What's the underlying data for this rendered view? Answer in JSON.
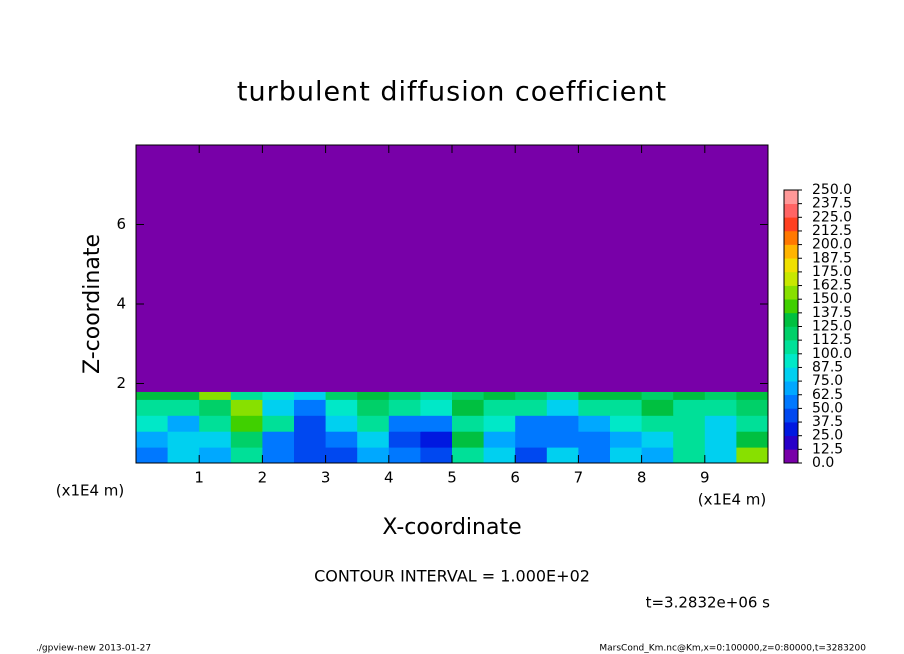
{
  "chart_data": {
    "type": "contour",
    "title": "turbulent diffusion coefficient",
    "x_label": "X-coordinate",
    "y_label": "Z-coordinate",
    "x_unit": "(x1E4 m)",
    "y_unit": "(x1E4 m)",
    "xlim": [
      0,
      10
    ],
    "ylim": [
      0,
      8
    ],
    "xticks": [
      1,
      2,
      3,
      4,
      5,
      6,
      7,
      8,
      9
    ],
    "yticks": [
      2,
      4,
      6
    ],
    "x_edges": [
      0,
      0.5,
      1,
      1.5,
      2,
      2.5,
      3,
      3.5,
      4,
      4.5,
      5,
      5.5,
      6,
      6.5,
      7,
      7.5,
      8,
      8.5,
      9,
      9.5,
      10
    ],
    "y_edges": [
      0,
      0.4,
      0.8,
      1.2,
      1.6,
      1.8,
      8
    ],
    "z": [
      [
        62,
        75,
        70,
        110,
        60,
        40,
        45,
        70,
        60,
        40,
        110,
        80,
        40,
        75,
        60,
        80,
        70,
        110,
        75,
        150
      ],
      [
        70,
        80,
        75,
        120,
        55,
        45,
        60,
        75,
        45,
        35,
        130,
        70,
        55,
        60,
        50,
        70,
        80,
        100,
        80,
        130
      ],
      [
        90,
        70,
        100,
        140,
        100,
        40,
        80,
        100,
        60,
        60,
        110,
        90,
        60,
        55,
        70,
        90,
        110,
        100,
        85,
        110
      ],
      [
        110,
        100,
        120,
        150,
        80,
        60,
        90,
        120,
        100,
        90,
        130,
        100,
        110,
        80,
        110,
        100,
        130,
        110,
        100,
        120
      ],
      [
        130,
        125,
        150,
        110,
        90,
        80,
        120,
        125,
        120,
        110,
        120,
        125,
        120,
        110,
        125,
        130,
        120,
        125,
        120,
        125
      ],
      [
        0,
        0,
        0,
        0,
        0,
        0,
        0,
        0,
        0,
        0,
        0,
        0,
        0,
        0,
        0,
        0,
        0,
        0,
        0,
        0
      ]
    ],
    "clim": [
      0,
      250
    ],
    "cticks": [
      {
        "value": 0,
        "label": "0.0"
      },
      {
        "value": 12.5,
        "label": "12.5"
      },
      {
        "value": 25,
        "label": "25.0"
      },
      {
        "value": 37.5,
        "label": "37.5"
      },
      {
        "value": 50,
        "label": "50.0"
      },
      {
        "value": 62.5,
        "label": "62.5"
      },
      {
        "value": 75,
        "label": "75.0"
      },
      {
        "value": 87.5,
        "label": "87.5"
      },
      {
        "value": 100,
        "label": "100.0"
      },
      {
        "value": 112.5,
        "label": "112.5"
      },
      {
        "value": 125,
        "label": "125.0"
      },
      {
        "value": 137.5,
        "label": "137.5"
      },
      {
        "value": 150,
        "label": "150.0"
      },
      {
        "value": 162.5,
        "label": "162.5"
      },
      {
        "value": 175,
        "label": "175.0"
      },
      {
        "value": 187.5,
        "label": "187.5"
      },
      {
        "value": 200,
        "label": "200.0"
      },
      {
        "value": 212.5,
        "label": "212.5"
      },
      {
        "value": 225,
        "label": "225.0"
      },
      {
        "value": 237.5,
        "label": "237.5"
      },
      {
        "value": 250,
        "label": "250.0"
      }
    ],
    "colors": [
      "#7800a8",
      "#2800c8",
      "#0018e0",
      "#0048f0",
      "#0078ff",
      "#00a8ff",
      "#00d0f0",
      "#00e8c8",
      "#00e098",
      "#00d068",
      "#00c040",
      "#40d000",
      "#88e000",
      "#c8e800",
      "#f0e000",
      "#ffb400",
      "#ff7800",
      "#ff4020",
      "#ff6464",
      "#ff9898"
    ],
    "contour_interval": "CONTOUR INTERVAL = 1.000E+02",
    "time_label": "t=3.2832e+06 s",
    "footer_left": "./gpview-new  2013-01-27",
    "footer_right": "MarsCond_Km.nc@Km,x=0:100000,z=0:80000,t=3283200"
  }
}
